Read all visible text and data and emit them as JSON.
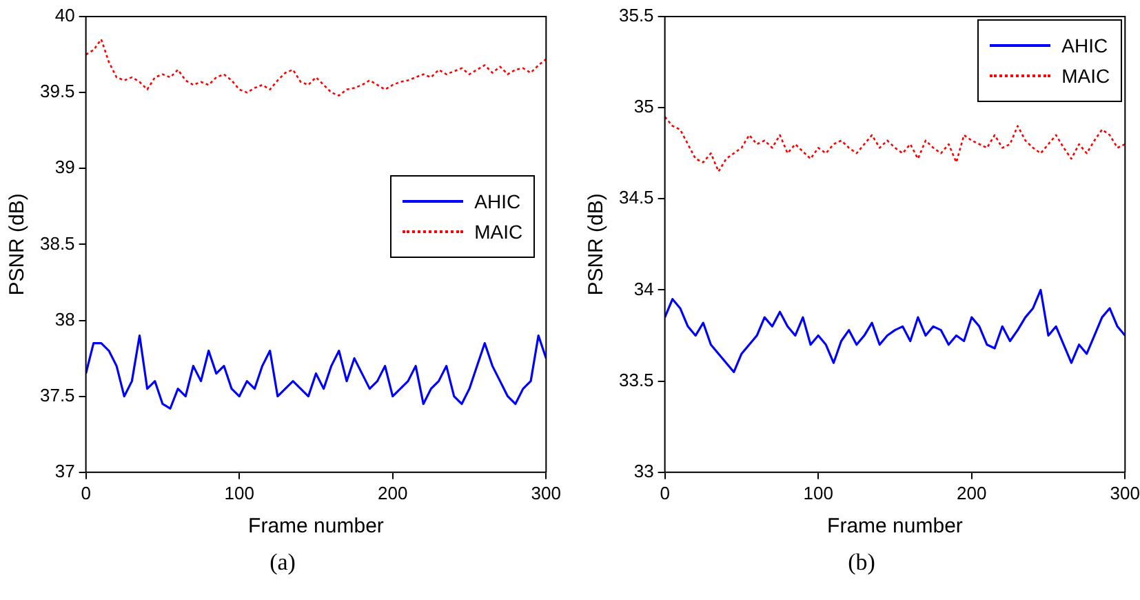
{
  "chart_data": [
    {
      "type": "line",
      "xlabel": "Frame number",
      "ylabel": "PSNR (dB)",
      "annotations": [
        "(a)"
      ],
      "x": [
        0,
        5,
        10,
        15,
        20,
        25,
        30,
        35,
        40,
        45,
        50,
        55,
        60,
        65,
        70,
        75,
        80,
        85,
        90,
        95,
        100,
        105,
        110,
        115,
        120,
        125,
        130,
        135,
        140,
        145,
        150,
        155,
        160,
        165,
        170,
        175,
        180,
        185,
        190,
        195,
        200,
        205,
        210,
        215,
        220,
        225,
        230,
        235,
        240,
        245,
        250,
        255,
        260,
        265,
        270,
        275,
        280,
        285,
        290,
        295,
        300
      ],
      "xlim": [
        0,
        300
      ],
      "xticks": [
        0,
        100,
        200,
        300
      ],
      "ylim": [
        37,
        40
      ],
      "yticks": [
        37,
        37.5,
        38,
        38.5,
        39,
        39.5,
        40
      ],
      "grid": false,
      "legend": "right",
      "series": [
        {
          "name": "AHIC",
          "color": "#0000ff",
          "line_style": "solid",
          "values": [
            37.65,
            37.85,
            37.85,
            37.8,
            37.7,
            37.5,
            37.6,
            37.9,
            37.55,
            37.6,
            37.45,
            37.42,
            37.55,
            37.5,
            37.7,
            37.6,
            37.8,
            37.65,
            37.7,
            37.55,
            37.5,
            37.6,
            37.55,
            37.7,
            37.8,
            37.5,
            37.55,
            37.6,
            37.55,
            37.5,
            37.65,
            37.55,
            37.7,
            37.8,
            37.6,
            37.75,
            37.65,
            37.55,
            37.6,
            37.7,
            37.5,
            37.55,
            37.6,
            37.7,
            37.45,
            37.55,
            37.6,
            37.7,
            37.5,
            37.45,
            37.55,
            37.7,
            37.85,
            37.7,
            37.6,
            37.5,
            37.45,
            37.55,
            37.6,
            37.9,
            37.75
          ]
        },
        {
          "name": "MAIC",
          "color": "#ff0000",
          "line_style": "dotted",
          "values": [
            39.75,
            39.78,
            39.85,
            39.7,
            39.6,
            39.58,
            39.6,
            39.57,
            39.52,
            39.6,
            39.62,
            39.6,
            39.65,
            39.58,
            39.55,
            39.57,
            39.55,
            39.6,
            39.62,
            39.58,
            39.52,
            39.5,
            39.53,
            39.55,
            39.52,
            39.58,
            39.63,
            39.65,
            39.57,
            39.55,
            39.6,
            39.55,
            39.5,
            39.48,
            39.52,
            39.53,
            39.55,
            39.58,
            39.55,
            39.52,
            39.55,
            39.57,
            39.58,
            39.6,
            39.62,
            39.6,
            39.65,
            39.62,
            39.64,
            39.66,
            39.62,
            39.65,
            39.68,
            39.63,
            39.67,
            39.62,
            39.65,
            39.66,
            39.63,
            39.68,
            39.72
          ]
        }
      ]
    },
    {
      "type": "line",
      "xlabel": "Frame number",
      "ylabel": "PSNR (dB)",
      "annotations": [
        "(b)"
      ],
      "x": [
        0,
        5,
        10,
        15,
        20,
        25,
        30,
        35,
        40,
        45,
        50,
        55,
        60,
        65,
        70,
        75,
        80,
        85,
        90,
        95,
        100,
        105,
        110,
        115,
        120,
        125,
        130,
        135,
        140,
        145,
        150,
        155,
        160,
        165,
        170,
        175,
        180,
        185,
        190,
        195,
        200,
        205,
        210,
        215,
        220,
        225,
        230,
        235,
        240,
        245,
        250,
        255,
        260,
        265,
        270,
        275,
        280,
        285,
        290,
        295,
        300
      ],
      "xlim": [
        0,
        300
      ],
      "xticks": [
        0,
        100,
        200,
        300
      ],
      "ylim": [
        33,
        35.5
      ],
      "yticks": [
        33,
        33.5,
        34,
        34.5,
        35,
        35.5
      ],
      "grid": false,
      "legend": "top right",
      "series": [
        {
          "name": "AHIC",
          "color": "#0000ff",
          "line_style": "solid",
          "values": [
            33.85,
            33.95,
            33.9,
            33.8,
            33.75,
            33.82,
            33.7,
            33.65,
            33.6,
            33.55,
            33.65,
            33.7,
            33.75,
            33.85,
            33.8,
            33.88,
            33.8,
            33.75,
            33.85,
            33.7,
            33.75,
            33.7,
            33.6,
            33.72,
            33.78,
            33.7,
            33.75,
            33.82,
            33.7,
            33.75,
            33.78,
            33.8,
            33.72,
            33.85,
            33.75,
            33.8,
            33.78,
            33.7,
            33.75,
            33.72,
            33.85,
            33.8,
            33.7,
            33.68,
            33.8,
            33.72,
            33.78,
            33.85,
            33.9,
            34.0,
            33.75,
            33.8,
            33.7,
            33.6,
            33.7,
            33.65,
            33.75,
            33.85,
            33.9,
            33.8,
            33.75
          ]
        },
        {
          "name": "MAIC",
          "color": "#ff0000",
          "line_style": "dotted",
          "values": [
            34.95,
            34.9,
            34.88,
            34.8,
            34.72,
            34.7,
            34.75,
            34.65,
            34.72,
            34.75,
            34.78,
            34.85,
            34.8,
            34.82,
            34.78,
            34.85,
            34.75,
            34.8,
            34.76,
            34.72,
            34.78,
            34.75,
            34.8,
            34.82,
            34.78,
            34.75,
            34.8,
            34.85,
            34.78,
            34.82,
            34.78,
            34.75,
            34.8,
            34.72,
            34.82,
            34.78,
            34.75,
            34.8,
            34.7,
            34.85,
            34.82,
            34.8,
            34.78,
            34.85,
            34.78,
            34.8,
            34.9,
            34.82,
            34.78,
            34.75,
            34.8,
            34.85,
            34.78,
            34.72,
            34.8,
            34.75,
            34.82,
            34.88,
            34.85,
            34.78,
            34.8
          ]
        }
      ]
    }
  ]
}
